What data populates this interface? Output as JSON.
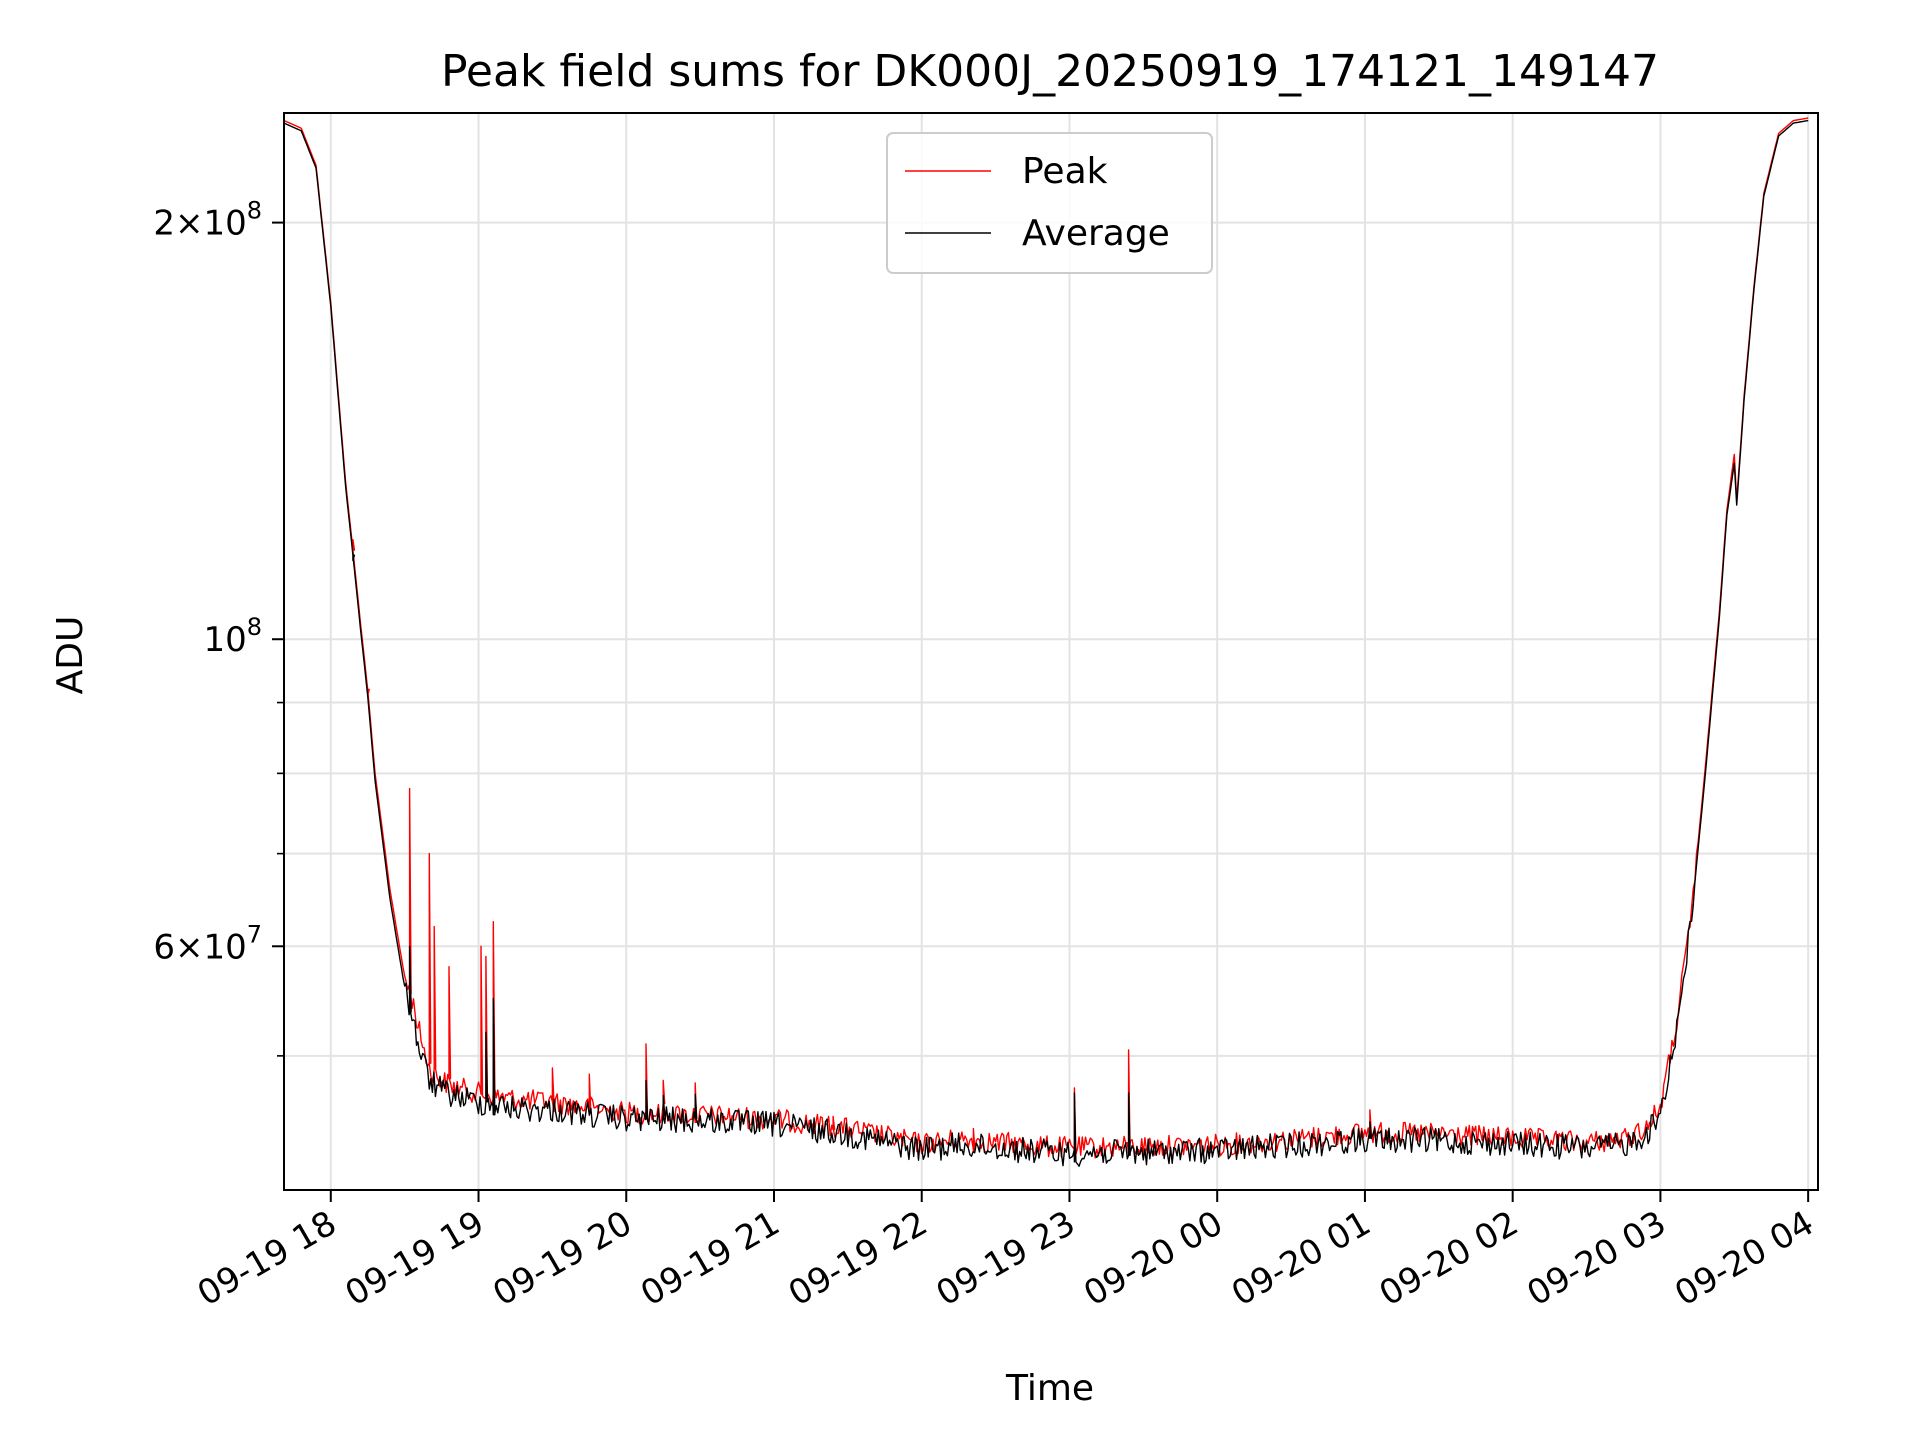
{
  "chart_data": {
    "type": "line",
    "title": "Peak field sums for DK000J_20250919_174121_149147",
    "xlabel": "Time",
    "ylabel": "ADU",
    "yscale": "log",
    "xlim": [
      "2025-09-19T17:41",
      "2025-09-20T04:04"
    ],
    "ylim": [
      40000000,
      240000000
    ],
    "grid": true,
    "legend_position": "top-center",
    "x_ticks": [
      {
        "time": "2025-09-19T18:00",
        "label": "09-19 18"
      },
      {
        "time": "2025-09-19T19:00",
        "label": "09-19 19"
      },
      {
        "time": "2025-09-19T20:00",
        "label": "09-19 20"
      },
      {
        "time": "2025-09-19T21:00",
        "label": "09-19 21"
      },
      {
        "time": "2025-09-19T22:00",
        "label": "09-19 22"
      },
      {
        "time": "2025-09-19T23:00",
        "label": "09-19 23"
      },
      {
        "time": "2025-09-20T00:00",
        "label": "09-20 00"
      },
      {
        "time": "2025-09-20T01:00",
        "label": "09-20 01"
      },
      {
        "time": "2025-09-20T02:00",
        "label": "09-20 02"
      },
      {
        "time": "2025-09-20T03:00",
        "label": "09-20 03"
      },
      {
        "time": "2025-09-20T04:00",
        "label": "09-20 04"
      }
    ],
    "y_ticks": [
      {
        "value": 200000000,
        "base": "2×10",
        "exp": "8"
      },
      {
        "value": 100000000,
        "base": "10",
        "exp": "8"
      },
      {
        "value": 60000000,
        "base": "6×10",
        "exp": "7"
      }
    ],
    "y_minor_ticks": [
      50000000,
      70000000,
      80000000,
      90000000
    ],
    "series": [
      {
        "name": "Peak",
        "color": "#ff0000",
        "points": [
          [
            "2025-09-19T17:41",
            237000000
          ],
          [
            "2025-09-19T17:48",
            234000000
          ],
          [
            "2025-09-19T17:54",
            220000000
          ],
          [
            "2025-09-19T18:00",
            175000000
          ],
          [
            "2025-09-19T18:06",
            130000000
          ],
          [
            "2025-09-19T18:09",
            116000000
          ],
          [
            "2025-09-19T18:12",
            103000000
          ],
          [
            "2025-09-19T18:15",
            92000000
          ],
          [
            "2025-09-19T18:18",
            80000000
          ],
          [
            "2025-09-19T18:24",
            66000000
          ],
          [
            "2025-09-19T18:30",
            57000000
          ],
          [
            "2025-09-19T18:33",
            55000000
          ],
          [
            "2025-09-19T18:36",
            52000000
          ],
          [
            "2025-09-19T18:40",
            49000000
          ],
          [
            "2025-09-19T18:45",
            48000000
          ],
          [
            "2025-09-19T18:50",
            47500000
          ],
          [
            "2025-09-19T19:00",
            47000000
          ],
          [
            "2025-09-19T19:15",
            46500000
          ],
          [
            "2025-09-19T19:30",
            46300000
          ],
          [
            "2025-09-19T20:00",
            45500000
          ],
          [
            "2025-09-19T20:30",
            45300000
          ],
          [
            "2025-09-19T21:00",
            45000000
          ],
          [
            "2025-09-19T21:30",
            44300000
          ],
          [
            "2025-09-19T22:00",
            43200000
          ],
          [
            "2025-09-19T22:15",
            43500000
          ],
          [
            "2025-09-19T22:30",
            43300000
          ],
          [
            "2025-09-19T23:00",
            42900000
          ],
          [
            "2025-09-19T23:30",
            43000000
          ],
          [
            "2025-09-20T00:00",
            43100000
          ],
          [
            "2025-09-20T00:30",
            43500000
          ],
          [
            "2025-09-20T01:00",
            44000000
          ],
          [
            "2025-09-20T01:30",
            43900000
          ],
          [
            "2025-09-20T02:00",
            43600000
          ],
          [
            "2025-09-20T02:30",
            43300000
          ],
          [
            "2025-09-20T02:45",
            43500000
          ],
          [
            "2025-09-20T02:55",
            44500000
          ],
          [
            "2025-09-20T03:00",
            46000000
          ],
          [
            "2025-09-20T03:06",
            52000000
          ],
          [
            "2025-09-20T03:12",
            62000000
          ],
          [
            "2025-09-20T03:18",
            80000000
          ],
          [
            "2025-09-20T03:24",
            105000000
          ],
          [
            "2025-09-20T03:27",
            124000000
          ],
          [
            "2025-09-20T03:30",
            136000000
          ],
          [
            "2025-09-20T03:31",
            126000000
          ],
          [
            "2025-09-20T03:34",
            150000000
          ],
          [
            "2025-09-20T03:38",
            180000000
          ],
          [
            "2025-09-20T03:42",
            210000000
          ],
          [
            "2025-09-20T03:48",
            232000000
          ],
          [
            "2025-09-20T03:54",
            237000000
          ],
          [
            "2025-09-20T04:00",
            238000000
          ]
        ]
      },
      {
        "name": "Average",
        "color": "#000000",
        "points": [
          [
            "2025-09-19T17:41",
            236000000
          ],
          [
            "2025-09-19T17:48",
            233000000
          ],
          [
            "2025-09-19T17:54",
            219000000
          ],
          [
            "2025-09-19T18:00",
            174000000
          ],
          [
            "2025-09-19T18:06",
            129000000
          ],
          [
            "2025-09-19T18:09",
            115000000
          ],
          [
            "2025-09-19T18:12",
            102000000
          ],
          [
            "2025-09-19T18:15",
            91000000
          ],
          [
            "2025-09-19T18:18",
            79000000
          ],
          [
            "2025-09-19T18:24",
            65000000
          ],
          [
            "2025-09-19T18:30",
            56000000
          ],
          [
            "2025-09-19T18:33",
            53500000
          ],
          [
            "2025-09-19T18:36",
            50500000
          ],
          [
            "2025-09-19T18:40",
            48000000
          ],
          [
            "2025-09-19T18:45",
            47200000
          ],
          [
            "2025-09-19T18:50",
            46800000
          ],
          [
            "2025-09-19T19:00",
            46300000
          ],
          [
            "2025-09-19T19:15",
            45800000
          ],
          [
            "2025-09-19T19:30",
            45700000
          ],
          [
            "2025-09-19T20:00",
            45000000
          ],
          [
            "2025-09-19T20:30",
            44900000
          ],
          [
            "2025-09-19T21:00",
            44600000
          ],
          [
            "2025-09-19T21:30",
            43900000
          ],
          [
            "2025-09-19T22:00",
            42800000
          ],
          [
            "2025-09-19T22:15",
            43100000
          ],
          [
            "2025-09-19T22:30",
            42900000
          ],
          [
            "2025-09-19T23:00",
            42500000
          ],
          [
            "2025-09-19T23:30",
            42600000
          ],
          [
            "2025-09-20T00:00",
            42700000
          ],
          [
            "2025-09-20T00:30",
            43100000
          ],
          [
            "2025-09-20T01:00",
            43500000
          ],
          [
            "2025-09-20T01:30",
            43400000
          ],
          [
            "2025-09-20T02:00",
            43200000
          ],
          [
            "2025-09-20T02:30",
            42900000
          ],
          [
            "2025-09-20T02:45",
            43100000
          ],
          [
            "2025-09-20T02:55",
            44000000
          ],
          [
            "2025-09-20T03:00",
            45500000
          ],
          [
            "2025-09-20T03:06",
            51500000
          ],
          [
            "2025-09-20T03:12",
            61500000
          ],
          [
            "2025-09-20T03:18",
            79000000
          ],
          [
            "2025-09-20T03:24",
            104000000
          ],
          [
            "2025-09-20T03:27",
            123000000
          ],
          [
            "2025-09-20T03:30",
            134000000
          ],
          [
            "2025-09-20T03:31",
            125000000
          ],
          [
            "2025-09-20T03:34",
            149000000
          ],
          [
            "2025-09-20T03:38",
            179000000
          ],
          [
            "2025-09-20T03:42",
            209000000
          ],
          [
            "2025-09-20T03:48",
            231000000
          ],
          [
            "2025-09-20T03:54",
            236000000
          ],
          [
            "2025-09-20T04:00",
            237000000
          ]
        ]
      }
    ],
    "peak_spikes": [
      [
        "2025-09-19T18:09",
        118000000
      ],
      [
        "2025-09-19T18:15",
        91000000
      ],
      [
        "2025-09-19T18:32",
        78000000
      ],
      [
        "2025-09-19T18:40",
        70000000
      ],
      [
        "2025-09-19T18:42",
        62000000
      ],
      [
        "2025-09-19T18:48",
        58000000
      ],
      [
        "2025-09-19T19:01",
        60000000
      ],
      [
        "2025-09-19T19:03",
        59000000
      ],
      [
        "2025-09-19T19:06",
        62500000
      ],
      [
        "2025-09-19T19:30",
        49000000
      ],
      [
        "2025-09-19T19:45",
        48500000
      ],
      [
        "2025-09-19T20:08",
        51000000
      ],
      [
        "2025-09-19T20:15",
        48000000
      ],
      [
        "2025-09-19T20:28",
        47800000
      ],
      [
        "2025-09-19T21:24",
        45200000
      ],
      [
        "2025-09-19T22:21",
        44300000
      ],
      [
        "2025-09-19T23:02",
        47400000
      ],
      [
        "2025-09-19T23:24",
        50500000
      ],
      [
        "2025-09-20T01:02",
        45700000
      ]
    ],
    "average_spikes": [
      [
        "2025-09-19T18:09",
        114000000
      ],
      [
        "2025-09-19T18:32",
        60000000
      ],
      [
        "2025-09-19T19:03",
        52000000
      ],
      [
        "2025-09-19T19:06",
        55000000
      ],
      [
        "2025-09-19T20:08",
        48000000
      ],
      [
        "2025-09-19T20:15",
        46800000
      ],
      [
        "2025-09-19T20:28",
        46900000
      ],
      [
        "2025-09-19T23:02",
        47000000
      ],
      [
        "2025-09-19T23:24",
        47000000
      ],
      [
        "2025-09-20T01:02",
        44800000
      ]
    ]
  }
}
